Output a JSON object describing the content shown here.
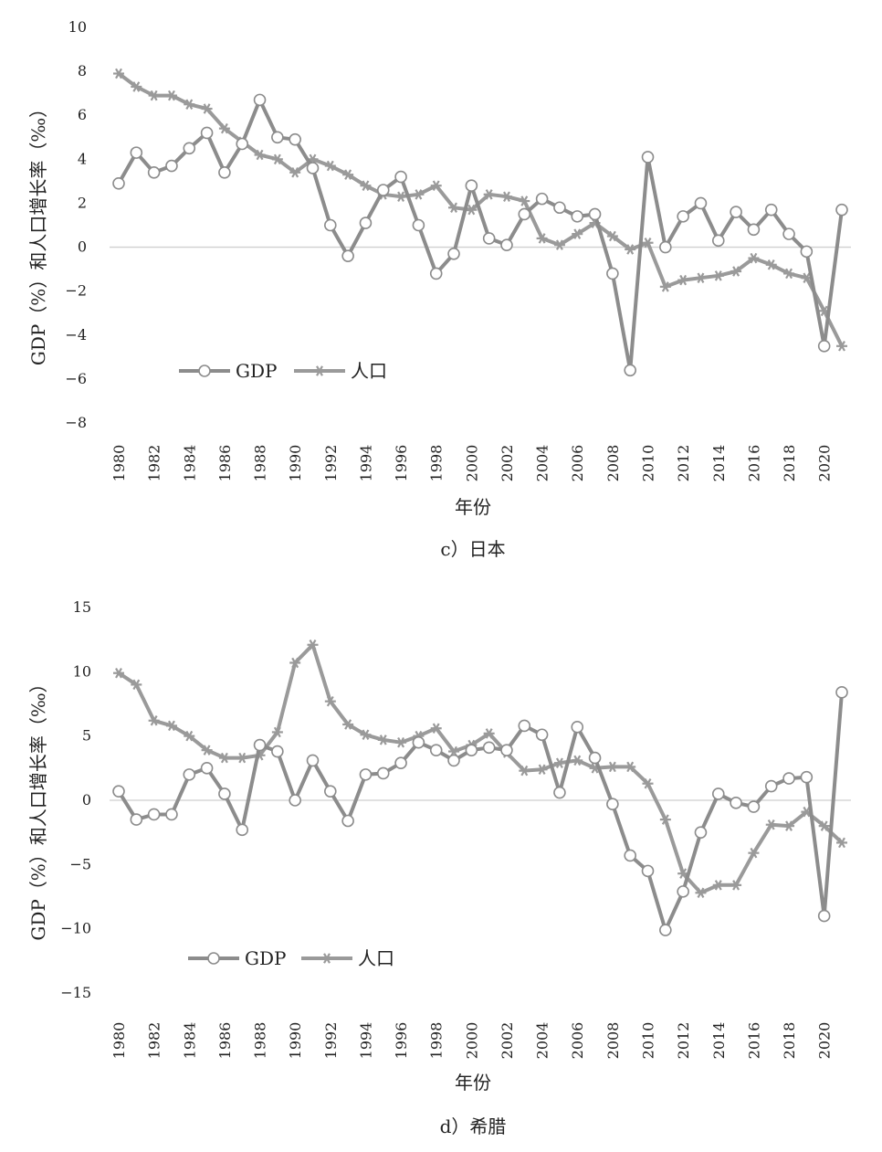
{
  "colors": {
    "gdp": "#8c8c8c",
    "population": "#9a9a9a",
    "zero_line": "#cfcfcf",
    "background": "#ffffff"
  },
  "legend": {
    "gdp_label": "GDP",
    "population_label": "人口",
    "gdp_icon": "circle-marker",
    "population_icon": "asterisk-marker"
  },
  "chart_data": [
    {
      "type": "line",
      "caption": "c）日本",
      "xlabel": "年份",
      "ylabel": "GDP（%）和人口增长率（‰）",
      "ylim": [
        -8,
        10
      ],
      "yticks": [
        "10",
        "8",
        "6",
        "4",
        "2",
        "0",
        "-2",
        "-4",
        "-6",
        "-8"
      ],
      "xticks": [
        "1980",
        "1982",
        "1984",
        "1986",
        "1988",
        "1990",
        "1992",
        "1994",
        "1996",
        "1998",
        "2000",
        "2002",
        "2004",
        "2006",
        "2008",
        "2010",
        "2012",
        "2014",
        "2016",
        "2018",
        "2020"
      ],
      "x": [
        1980,
        1981,
        1982,
        1983,
        1984,
        1985,
        1986,
        1987,
        1988,
        1989,
        1990,
        1991,
        1992,
        1993,
        1994,
        1995,
        1996,
        1997,
        1998,
        1999,
        2000,
        2001,
        2002,
        2003,
        2004,
        2005,
        2006,
        2007,
        2008,
        2009,
        2010,
        2011,
        2012,
        2013,
        2014,
        2015,
        2016,
        2017,
        2018,
        2019,
        2020,
        2021
      ],
      "grid": false,
      "legend_position": "lower-left",
      "series": [
        {
          "name": "GDP",
          "marker": "circle",
          "values": [
            2.9,
            4.3,
            3.4,
            3.7,
            4.5,
            5.2,
            3.4,
            4.7,
            6.7,
            5.0,
            4.9,
            3.6,
            1.0,
            -0.4,
            1.1,
            2.6,
            3.2,
            1.0,
            -1.2,
            -0.3,
            2.8,
            0.4,
            0.1,
            1.5,
            2.2,
            1.8,
            1.4,
            1.5,
            -1.2,
            -5.6,
            4.1,
            0.0,
            1.4,
            2.0,
            0.3,
            1.6,
            0.8,
            1.7,
            0.6,
            -0.2,
            -4.5,
            1.7
          ]
        },
        {
          "name": "人口",
          "marker": "asterisk",
          "values": [
            7.9,
            7.3,
            6.9,
            6.9,
            6.5,
            6.3,
            5.4,
            4.8,
            4.2,
            4.0,
            3.4,
            4.0,
            3.7,
            3.3,
            2.8,
            2.4,
            2.3,
            2.4,
            2.8,
            1.8,
            1.7,
            2.4,
            2.3,
            2.1,
            0.4,
            0.1,
            0.6,
            1.1,
            0.5,
            -0.1,
            0.2,
            -1.8,
            -1.5,
            -1.4,
            -1.3,
            -1.1,
            -0.5,
            -0.8,
            -1.2,
            -1.4,
            -2.9,
            -4.5
          ]
        }
      ]
    },
    {
      "type": "line",
      "caption": "d）希腊",
      "xlabel": "年份",
      "ylabel": "GDP（%）和人口增长率（‰）",
      "ylim": [
        -15,
        15
      ],
      "yticks": [
        "15",
        "10",
        "5",
        "0",
        "-5",
        "-10",
        "-15"
      ],
      "xticks": [
        "1980",
        "1982",
        "1984",
        "1986",
        "1988",
        "1990",
        "1992",
        "1994",
        "1996",
        "1998",
        "2000",
        "2002",
        "2004",
        "2006",
        "2008",
        "2010",
        "2012",
        "2014",
        "2016",
        "2018",
        "2020"
      ],
      "x": [
        1980,
        1981,
        1982,
        1983,
        1984,
        1985,
        1986,
        1987,
        1988,
        1989,
        1990,
        1991,
        1992,
        1993,
        1994,
        1995,
        1996,
        1997,
        1998,
        1999,
        2000,
        2001,
        2002,
        2003,
        2004,
        2005,
        2006,
        2007,
        2008,
        2009,
        2010,
        2011,
        2012,
        2013,
        2014,
        2015,
        2016,
        2017,
        2018,
        2019,
        2020,
        2021
      ],
      "grid": false,
      "legend_position": "lower-left",
      "series": [
        {
          "name": "GDP",
          "marker": "circle",
          "values": [
            0.7,
            -1.5,
            -1.1,
            -1.1,
            2.0,
            2.5,
            0.5,
            -2.3,
            4.3,
            3.8,
            0.0,
            3.1,
            0.7,
            -1.6,
            2.0,
            2.1,
            2.9,
            4.5,
            3.9,
            3.1,
            3.9,
            4.1,
            3.9,
            5.8,
            5.1,
            0.6,
            5.7,
            3.3,
            -0.3,
            -4.3,
            -5.5,
            -10.1,
            -7.1,
            -2.5,
            0.5,
            -0.2,
            -0.5,
            1.1,
            1.7,
            1.8,
            -9.0,
            8.4
          ]
        },
        {
          "name": "人口",
          "marker": "asterisk",
          "values": [
            9.9,
            9.0,
            6.2,
            5.8,
            5.0,
            3.9,
            3.3,
            3.3,
            3.5,
            5.3,
            10.7,
            12.1,
            7.7,
            5.9,
            5.1,
            4.7,
            4.5,
            5.0,
            5.6,
            3.8,
            4.3,
            5.2,
            3.7,
            2.3,
            2.4,
            2.9,
            3.1,
            2.5,
            2.6,
            2.6,
            1.3,
            -1.5,
            -5.7,
            -7.2,
            -6.6,
            -6.6,
            -4.1,
            -1.9,
            -2.0,
            -0.9,
            -2.0,
            -3.3
          ]
        }
      ]
    }
  ]
}
